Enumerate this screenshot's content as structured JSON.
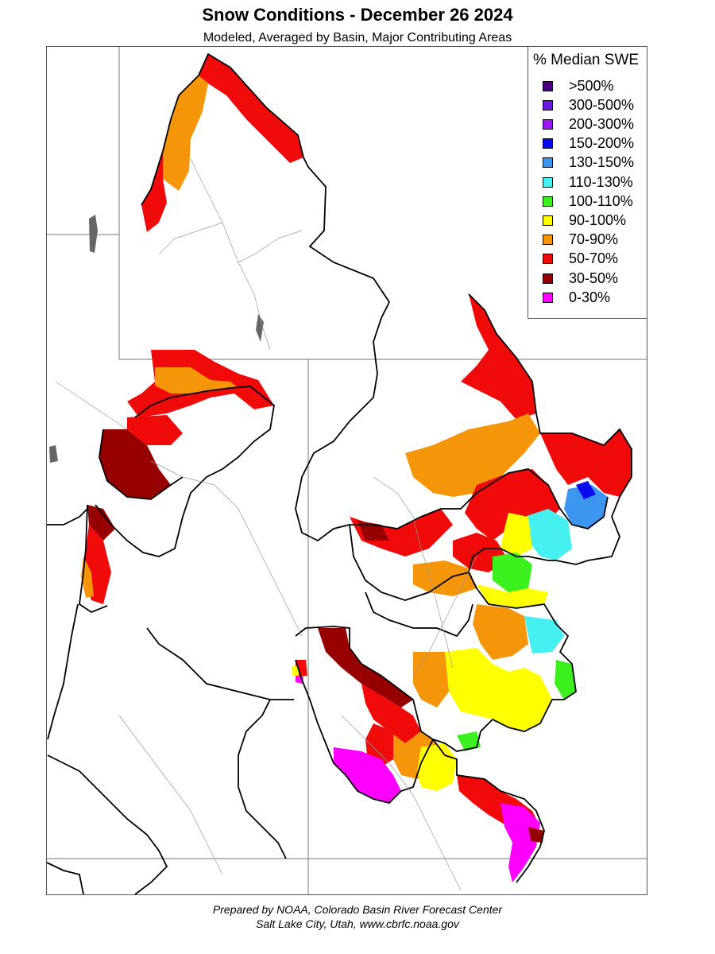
{
  "header": {
    "title": "Snow Conditions - December 26 2024",
    "subtitle": "Modeled, Averaged by Basin, Major Contributing Areas"
  },
  "legend": {
    "title": "% Median SWE",
    "items": [
      {
        "label": ">500%",
        "color": "#4b0082"
      },
      {
        "label": "300-500%",
        "color": "#6a1be0"
      },
      {
        "label": "200-300%",
        "color": "#9b19f5"
      },
      {
        "label": "150-200%",
        "color": "#0a0af0"
      },
      {
        "label": "130-150%",
        "color": "#3c96f0"
      },
      {
        "label": "110-130%",
        "color": "#46f0f0"
      },
      {
        "label": "100-110%",
        "color": "#3cf01e"
      },
      {
        "label": "90-100%",
        "color": "#ffff00"
      },
      {
        "label": "70-90%",
        "color": "#f5960a"
      },
      {
        "label": "50-70%",
        "color": "#f00a0a"
      },
      {
        "label": "30-50%",
        "color": "#960000"
      },
      {
        "label": "0-30%",
        "color": "#ff00ff"
      }
    ]
  },
  "footer": {
    "line1": "Prepared by NOAA, Colorado Basin River Forecast Center",
    "line2": "Salt Lake City, Utah, www.cbrfc.noaa.gov"
  }
}
